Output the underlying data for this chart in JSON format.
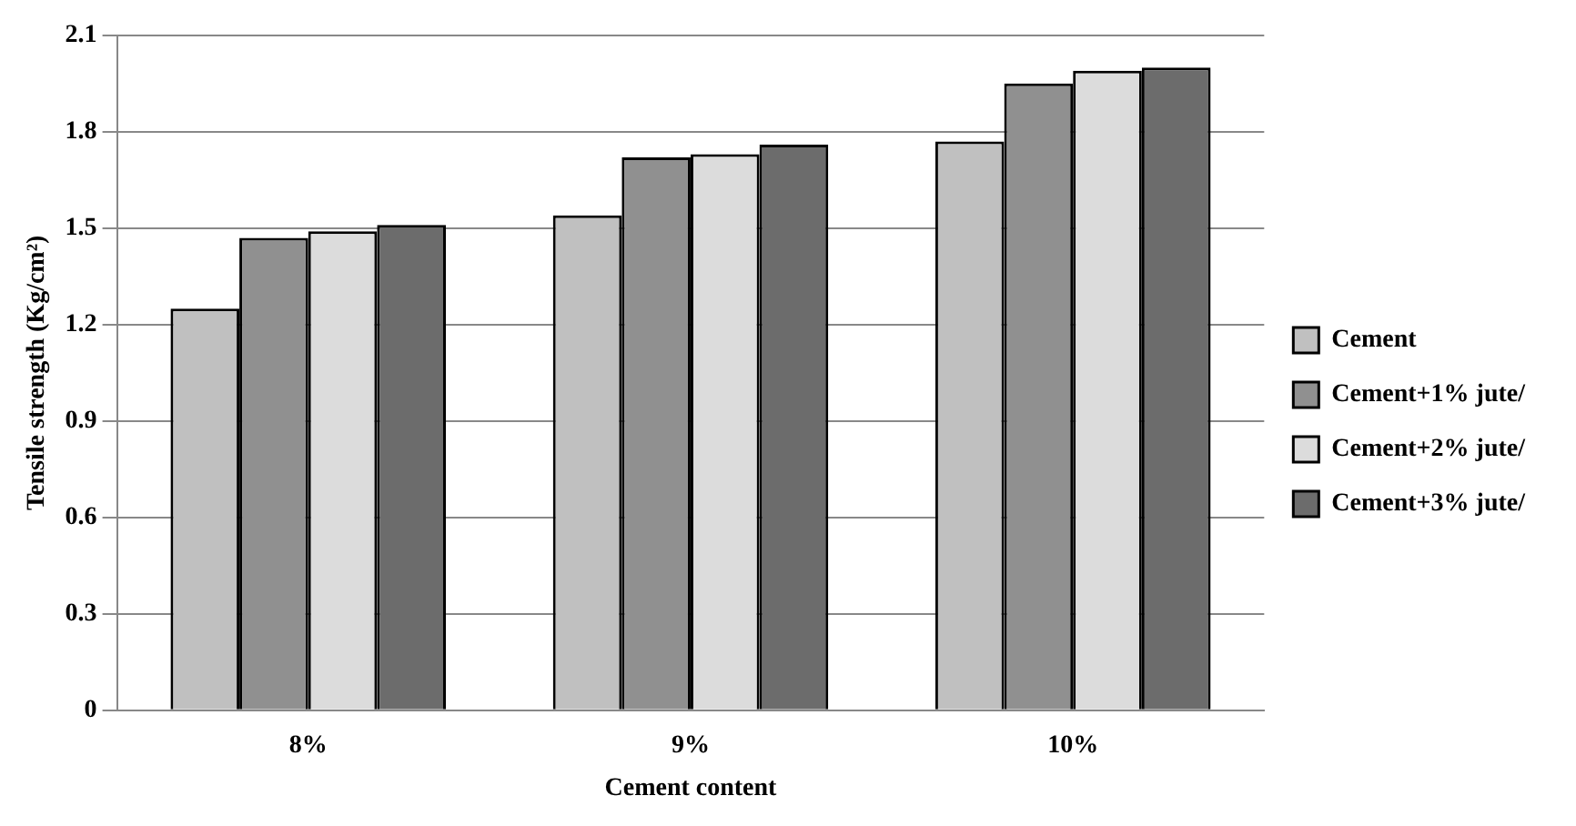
{
  "chart_data": {
    "type": "bar",
    "xlabel": "Cement content",
    "ylabel": "Tensile strength (Kg/cm²)",
    "categories": [
      "8%",
      "9%",
      "10%"
    ],
    "series": [
      {
        "name": "Cement",
        "color": "#c0c0c0",
        "values": [
          1.25,
          1.54,
          1.77
        ]
      },
      {
        "name": "Cement+1% jute/",
        "color": "#909090",
        "values": [
          1.47,
          1.72,
          1.95
        ]
      },
      {
        "name": "Cement+2% jute/",
        "color": "#dcdcdc",
        "values": [
          1.49,
          1.73,
          1.99
        ]
      },
      {
        "name": "Cement+3% jute/",
        "color": "#6c6c6c",
        "values": [
          1.51,
          1.76,
          2.0
        ]
      }
    ],
    "ylim": [
      0,
      2.1
    ],
    "yticks": [
      0,
      0.3,
      0.6,
      0.9,
      1.2,
      1.5,
      1.8,
      2.1
    ],
    "grid": "y",
    "legend": "right"
  }
}
